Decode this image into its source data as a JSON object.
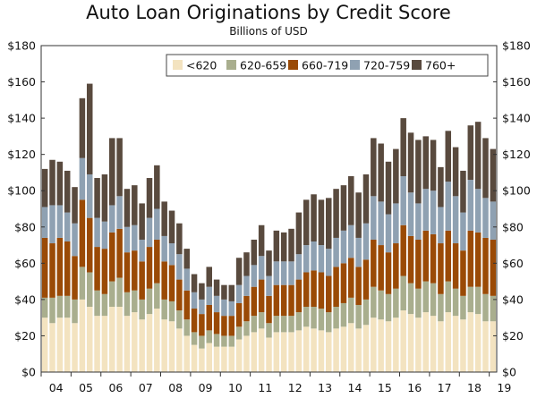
{
  "chart_data": {
    "type": "bar",
    "stacked": true,
    "title": "Auto Loan Originations by Credit Score",
    "subtitle": "Billions of USD",
    "xlabel": "",
    "ylabel": "",
    "ylim": [
      0,
      180
    ],
    "y_ticks": [
      "$0",
      "$20",
      "$40",
      "$60",
      "$80",
      "$100",
      "$120",
      "$140",
      "$160",
      "$180"
    ],
    "y_axes": "both",
    "grid": false,
    "legend_position": "top-right",
    "x_tick_labels": [
      "04",
      "05",
      "06",
      "07",
      "08",
      "09",
      "10",
      "11",
      "12",
      "13",
      "14",
      "15",
      "16",
      "17",
      "18",
      "19"
    ],
    "categories": [
      "2004Q1",
      "2004Q2",
      "2004Q3",
      "2004Q4",
      "2005Q1",
      "2005Q2",
      "2005Q3",
      "2005Q4",
      "2006Q1",
      "2006Q2",
      "2006Q3",
      "2006Q4",
      "2007Q1",
      "2007Q2",
      "2007Q3",
      "2007Q4",
      "2008Q1",
      "2008Q2",
      "2008Q3",
      "2008Q4",
      "2009Q1",
      "2009Q2",
      "2009Q3",
      "2009Q4",
      "2010Q1",
      "2010Q2",
      "2010Q3",
      "2010Q4",
      "2011Q1",
      "2011Q2",
      "2011Q3",
      "2011Q4",
      "2012Q1",
      "2012Q2",
      "2012Q3",
      "2012Q4",
      "2013Q1",
      "2013Q2",
      "2013Q3",
      "2013Q4",
      "2014Q1",
      "2014Q2",
      "2014Q3",
      "2014Q4",
      "2015Q1",
      "2015Q2",
      "2015Q3",
      "2015Q4",
      "2016Q1",
      "2016Q2",
      "2016Q3",
      "2016Q4",
      "2017Q1",
      "2017Q2",
      "2017Q3",
      "2017Q4",
      "2018Q1",
      "2018Q2",
      "2018Q3",
      "2018Q4",
      "2019Q1"
    ],
    "series": [
      {
        "name": "<620",
        "color": "#f3e3c0",
        "values": [
          30,
          27,
          30,
          30,
          27,
          40,
          36,
          31,
          31,
          36,
          36,
          31,
          33,
          29,
          32,
          35,
          29,
          28,
          24,
          20,
          15,
          13,
          16,
          14,
          14,
          14,
          18,
          20,
          22,
          24,
          19,
          22,
          22,
          22,
          23,
          25,
          24,
          23,
          22,
          24,
          25,
          27,
          24,
          26,
          30,
          29,
          28,
          30,
          34,
          32,
          30,
          33,
          31,
          28,
          33,
          31,
          29,
          33,
          32,
          28,
          28
        ]
      },
      {
        "name": "620-659",
        "color": "#a9ae8e",
        "values": [
          11,
          14,
          12,
          12,
          13,
          18,
          19,
          14,
          12,
          14,
          16,
          13,
          12,
          11,
          14,
          14,
          11,
          11,
          10,
          9,
          7,
          7,
          7,
          7,
          6,
          6,
          7,
          8,
          9,
          9,
          8,
          9,
          9,
          9,
          10,
          11,
          12,
          12,
          11,
          12,
          13,
          14,
          13,
          14,
          17,
          16,
          15,
          16,
          19,
          17,
          16,
          17,
          18,
          15,
          17,
          15,
          13,
          14,
          15,
          15,
          14
        ]
      },
      {
        "name": "660-719",
        "color": "#9a4a06",
        "values": [
          33,
          30,
          32,
          30,
          24,
          37,
          30,
          24,
          25,
          27,
          27,
          22,
          22,
          21,
          23,
          24,
          21,
          20,
          17,
          16,
          13,
          12,
          14,
          12,
          11,
          11,
          13,
          14,
          16,
          18,
          15,
          17,
          17,
          17,
          18,
          19,
          20,
          20,
          20,
          22,
          22,
          22,
          21,
          22,
          26,
          25,
          23,
          25,
          28,
          26,
          27,
          28,
          27,
          28,
          28,
          25,
          25,
          31,
          30,
          31,
          31
        ]
      },
      {
        "name": "720-759",
        "color": "#8fa1b2",
        "values": [
          17,
          21,
          18,
          16,
          18,
          23,
          24,
          16,
          15,
          15,
          18,
          14,
          14,
          12,
          16,
          17,
          14,
          12,
          14,
          12,
          9,
          8,
          10,
          9,
          9,
          8,
          10,
          11,
          12,
          13,
          11,
          13,
          13,
          13,
          14,
          15,
          16,
          15,
          15,
          16,
          18,
          18,
          16,
          20,
          24,
          24,
          21,
          22,
          27,
          24,
          20,
          23,
          24,
          20,
          27,
          26,
          21,
          28,
          24,
          22,
          21
        ]
      },
      {
        "name": "760+",
        "color": "#594a3e",
        "values": [
          21,
          25,
          24,
          23,
          20,
          33,
          50,
          22,
          26,
          37,
          32,
          21,
          22,
          20,
          22,
          24,
          19,
          18,
          17,
          11,
          10,
          9,
          11,
          9,
          8,
          9,
          15,
          13,
          14,
          17,
          14,
          17,
          16,
          18,
          23,
          25,
          26,
          25,
          28,
          27,
          25,
          27,
          25,
          27,
          32,
          32,
          29,
          30,
          32,
          33,
          35,
          29,
          28,
          22,
          28,
          27,
          23,
          30,
          37,
          33,
          29
        ]
      }
    ]
  }
}
